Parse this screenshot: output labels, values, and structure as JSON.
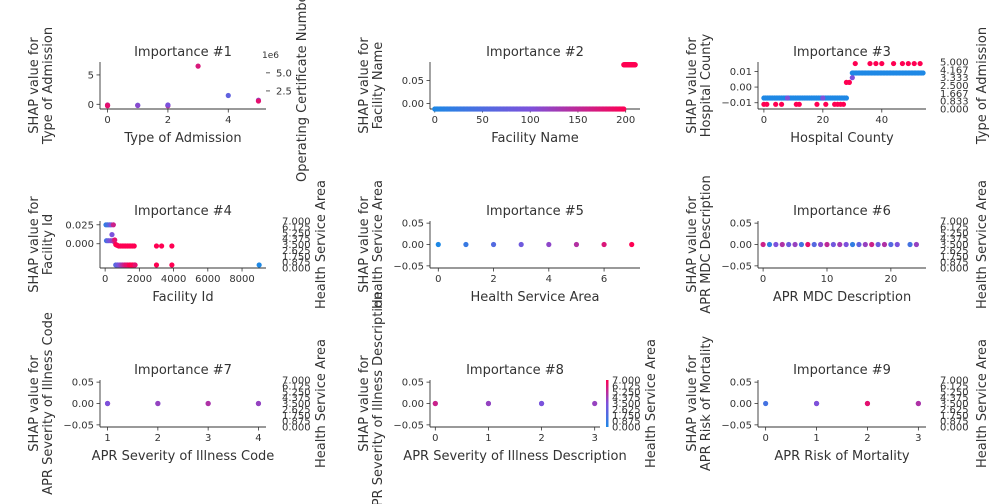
{
  "chart_data": [
    {
      "type": "scatter",
      "title": "Importance #1",
      "xlabel": "Type of Admission",
      "ylabel": [
        "SHAP value for",
        "Type of Admission"
      ],
      "xlim": [
        -0.25,
        5.25
      ],
      "ylim": [
        -0.8,
        7.2
      ],
      "xticks": [
        0,
        2,
        4
      ],
      "xtick_labels": [
        "0",
        "2",
        "4"
      ],
      "yticks": [
        0,
        5
      ],
      "ytick_labels": [
        "0",
        "5"
      ],
      "cbar": {
        "label": "Operating Certificate Number",
        "multiplier": "1e6",
        "ticks": [
          2.5,
          5.0
        ],
        "tick_labels": [
          "2.5",
          "5.0"
        ],
        "range": [
          0,
          6.5
        ],
        "style": "scale"
      },
      "points": [
        [
          0,
          -0.12,
          0.75
        ],
        [
          0,
          -0.18,
          0.85
        ],
        [
          0,
          -0.25,
          0.9
        ],
        [
          1,
          -0.15,
          0.3
        ],
        [
          1,
          -0.2,
          0.55
        ],
        [
          2,
          -0.18,
          0.1
        ],
        [
          2,
          -0.25,
          0.75
        ],
        [
          2,
          -0.12,
          0.5
        ],
        [
          3,
          6.5,
          0.85
        ],
        [
          4,
          1.5,
          0.35
        ],
        [
          5,
          0.7,
          0.6
        ],
        [
          5,
          0.55,
          0.9
        ]
      ]
    },
    {
      "type": "scatter",
      "title": "Importance #2",
      "xlabel": "Facility Name",
      "ylabel": [
        "SHAP value for",
        "Facility Name"
      ],
      "xlim": [
        -5,
        215
      ],
      "ylim": [
        -0.012,
        0.09
      ],
      "xticks": [
        0,
        50,
        100,
        150,
        200
      ],
      "xtick_labels": [
        "0",
        "50",
        "100",
        "150",
        "200"
      ],
      "yticks": [
        0,
        0.05
      ],
      "ytick_labels": [
        "0.00",
        "0.05"
      ],
      "cbar": null,
      "bands": [
        {
          "x0": 0,
          "x1": 198,
          "step": 1.5,
          "y": -0.012,
          "c0": 0,
          "c1": 0.98,
          "size": 2.6
        },
        {
          "x0": 198,
          "x1": 210,
          "step": 0.4,
          "y": 0.084,
          "c0": 1,
          "c1": 1,
          "size": 2.6
        }
      ],
      "points": []
    },
    {
      "type": "scatter",
      "title": "Importance #3",
      "xlabel": "Hospital County",
      "ylabel": [
        "SHAP value for",
        "Hospital County"
      ],
      "xlim": [
        -2,
        55
      ],
      "ylim": [
        -0.014,
        0.016
      ],
      "xticks": [
        0,
        20,
        40
      ],
      "xtick_labels": [
        "0",
        "20",
        "40"
      ],
      "yticks": [
        -0.01,
        0,
        0.01
      ],
      "ytick_labels": [
        "−0.01",
        "0.00",
        "0.01"
      ],
      "cbar": {
        "label": "Type of Admission",
        "ticks": [
          0,
          0.833,
          1.667,
          2.5,
          3.333,
          4.167,
          5.0
        ],
        "tick_labels": [
          "0.000",
          "0.833",
          "1.667",
          "2.500",
          "3.333",
          "4.167",
          "5.000"
        ],
        "range": [
          0,
          5
        ],
        "style": "labels"
      },
      "bands": [
        {
          "x0": 0,
          "x1": 28,
          "step": 0.6,
          "y": -0.007,
          "c0": 0,
          "c1": 0,
          "size": 2.6
        },
        {
          "x0": 30,
          "x1": 54,
          "step": 0.5,
          "y": 0.009,
          "c0": 0,
          "c1": 0,
          "size": 2.6
        }
      ],
      "points": [
        [
          0,
          -0.011,
          1
        ],
        [
          1,
          -0.011,
          1
        ],
        [
          4,
          -0.011,
          1
        ],
        [
          6,
          -0.011,
          1
        ],
        [
          11,
          -0.011,
          1
        ],
        [
          12,
          -0.011,
          1
        ],
        [
          18,
          -0.011,
          1
        ],
        [
          21,
          -0.011,
          1
        ],
        [
          24,
          -0.011,
          1
        ],
        [
          25,
          -0.011,
          1
        ],
        [
          26,
          -0.011,
          1
        ],
        [
          27,
          -0.011,
          1
        ],
        [
          28,
          0.003,
          1
        ],
        [
          29,
          0.003,
          1
        ],
        [
          30,
          0.006,
          0.5
        ],
        [
          31,
          0.015,
          1
        ],
        [
          36,
          0.015,
          1
        ],
        [
          38,
          0.015,
          1
        ],
        [
          40,
          0.015,
          1
        ],
        [
          44,
          0.015,
          1
        ],
        [
          47,
          0.015,
          1
        ],
        [
          49,
          0.015,
          1
        ],
        [
          51,
          0.015,
          1
        ],
        [
          53,
          0.015,
          1
        ],
        [
          20,
          -0.007,
          0.5
        ],
        [
          8,
          -0.007,
          0.5
        ]
      ]
    },
    {
      "type": "scatter",
      "title": "Importance #4",
      "xlabel": "Facility Id",
      "ylabel": [
        "SHAP value for",
        "Facility Id"
      ],
      "xlim": [
        -300,
        9400
      ],
      "ylim": [
        -0.032,
        0.03
      ],
      "xticks": [
        0,
        2000,
        4000,
        6000,
        8000
      ],
      "xtick_labels": [
        "0",
        "2000",
        "4000",
        "6000",
        "8000"
      ],
      "yticks": [
        0,
        0.025
      ],
      "ytick_labels": [
        "0.000",
        "0.025"
      ],
      "cbar": {
        "label": "Health Service Area",
        "ticks": [
          0,
          0.875,
          1.75,
          2.625,
          3.5,
          4.375,
          5.25,
          6.125,
          7.0
        ],
        "tick_labels": [
          "0.000",
          "0.875",
          "1.750",
          "2.625",
          "3.500",
          "4.375",
          "5.250",
          "6.125",
          "7.000"
        ],
        "range": [
          0,
          7
        ],
        "style": "labels"
      },
      "points": [
        [
          50,
          0.025,
          0.1
        ],
        [
          150,
          0.025,
          0.2
        ],
        [
          250,
          0.025,
          0.3
        ],
        [
          350,
          0.025,
          0.5
        ],
        [
          480,
          0.025,
          0.8
        ],
        [
          80,
          0.004,
          0.2
        ],
        [
          180,
          0.004,
          0.4
        ],
        [
          300,
          0.004,
          0.5
        ],
        [
          420,
          0.004,
          0.6
        ],
        [
          520,
          0.003,
          0.7
        ],
        [
          400,
          0.012,
          0.5
        ],
        [
          560,
          0.005,
          0.9
        ],
        [
          620,
          -0.001,
          1
        ],
        [
          700,
          -0.002,
          1
        ],
        [
          800,
          -0.003,
          1
        ],
        [
          900,
          -0.003,
          1
        ],
        [
          1000,
          -0.003,
          1
        ],
        [
          1100,
          -0.003,
          1
        ],
        [
          1200,
          -0.003,
          1
        ],
        [
          1300,
          -0.003,
          1
        ],
        [
          1400,
          -0.003,
          1
        ],
        [
          1500,
          -0.003,
          1
        ],
        [
          1600,
          -0.003,
          1
        ],
        [
          1700,
          -0.003,
          1
        ],
        [
          3000,
          -0.003,
          1
        ],
        [
          3300,
          -0.003,
          1
        ],
        [
          3900,
          -0.003,
          1
        ],
        [
          620,
          -0.028,
          0.3
        ],
        [
          720,
          -0.028,
          0.4
        ],
        [
          820,
          -0.028,
          0.5
        ],
        [
          920,
          -0.028,
          0.6
        ],
        [
          1020,
          -0.028,
          0.7
        ],
        [
          1120,
          -0.028,
          0.8
        ],
        [
          1220,
          -0.028,
          0.9
        ],
        [
          1320,
          -0.028,
          0.9
        ],
        [
          1420,
          -0.028,
          1
        ],
        [
          1500,
          -0.028,
          1
        ],
        [
          1600,
          -0.028,
          1
        ],
        [
          1700,
          -0.028,
          1
        ],
        [
          1750,
          -0.028,
          0.9
        ],
        [
          3000,
          -0.028,
          1
        ],
        [
          3900,
          -0.028,
          1
        ],
        [
          9000,
          -0.028,
          0
        ]
      ]
    },
    {
      "type": "scatter",
      "title": "Importance #5",
      "xlabel": "Health Service Area",
      "ylabel": [
        "SHAP value for",
        "Health Service Area"
      ],
      "xlim": [
        -0.3,
        7.3
      ],
      "ylim": [
        -0.055,
        0.055
      ],
      "xticks": [
        0,
        2,
        4,
        6
      ],
      "xtick_labels": [
        "0",
        "2",
        "4",
        "6"
      ],
      "yticks": [
        -0.05,
        0,
        0.05
      ],
      "ytick_labels": [
        "−0.05",
        "0.00",
        "0.05"
      ],
      "cbar": null,
      "points": [
        [
          0,
          0,
          0
        ],
        [
          1,
          0,
          0.14
        ],
        [
          2,
          0,
          0.28
        ],
        [
          3,
          0,
          0.43
        ],
        [
          4,
          0,
          0.57
        ],
        [
          5,
          0,
          0.71
        ],
        [
          6,
          0,
          0.86
        ],
        [
          7,
          0,
          1
        ]
      ]
    },
    {
      "type": "scatter",
      "title": "Importance #6",
      "xlabel": "APR MDC Description",
      "ylabel": [
        "SHAP value for",
        "APR MDC Description"
      ],
      "xlim": [
        -0.8,
        25.5
      ],
      "ylim": [
        -0.055,
        0.055
      ],
      "xticks": [
        0,
        10,
        20
      ],
      "xtick_labels": [
        "0",
        "10",
        "20"
      ],
      "yticks": [
        -0.05,
        0,
        0.05
      ],
      "ytick_labels": [
        "−0.05",
        "0.00",
        "0.05"
      ],
      "cbar": {
        "label": "Health Service Area",
        "ticks": [
          0,
          0.875,
          1.75,
          2.625,
          3.5,
          4.375,
          5.25,
          6.125,
          7.0
        ],
        "tick_labels": [
          "0.000",
          "0.875",
          "1.750",
          "2.625",
          "3.500",
          "4.375",
          "5.250",
          "6.125",
          "7.000"
        ],
        "range": [
          0,
          7
        ],
        "style": "labels"
      },
      "points": [
        [
          0,
          0,
          0.8
        ],
        [
          1,
          0,
          0.1
        ],
        [
          2,
          0,
          0.5
        ],
        [
          3,
          0,
          0.7
        ],
        [
          4,
          0,
          0.4
        ],
        [
          5,
          0,
          0.6
        ],
        [
          6,
          0,
          0.2
        ],
        [
          7,
          0,
          0.9
        ],
        [
          8,
          0,
          0.3
        ],
        [
          9,
          0,
          0.55
        ],
        [
          10,
          0,
          0.75
        ],
        [
          11,
          0,
          0.45
        ],
        [
          12,
          0,
          0.65
        ],
        [
          13,
          0,
          0.5
        ],
        [
          14,
          0,
          0.1
        ],
        [
          15,
          0,
          0.35
        ],
        [
          16,
          0,
          0.6
        ],
        [
          17,
          0,
          0.8
        ],
        [
          18,
          0,
          0.4
        ],
        [
          19,
          0,
          0.7
        ],
        [
          20,
          0,
          0.3
        ],
        [
          21,
          0,
          0.5
        ],
        [
          23,
          0,
          0.2
        ],
        [
          24,
          0,
          0.6
        ]
      ]
    },
    {
      "type": "scatter",
      "title": "Importance #7",
      "xlabel": "APR Severity of Illness Code",
      "ylabel": [
        "SHAP value for",
        "APR Severity of Illness Code"
      ],
      "xlim": [
        0.85,
        4.15
      ],
      "ylim": [
        -0.055,
        0.055
      ],
      "xticks": [
        1,
        2,
        3,
        4
      ],
      "xtick_labels": [
        "1",
        "2",
        "3",
        "4"
      ],
      "yticks": [
        -0.05,
        0,
        0.05
      ],
      "ytick_labels": [
        "−0.05",
        "0.00",
        "0.05"
      ],
      "cbar": {
        "label": "Health Service Area",
        "ticks": [
          0,
          0.875,
          1.75,
          2.625,
          3.5,
          4.375,
          5.25,
          6.125,
          7.0
        ],
        "tick_labels": [
          "0.000",
          "0.875",
          "1.750",
          "2.625",
          "3.500",
          "4.375",
          "5.250",
          "6.125",
          "7.000"
        ],
        "range": [
          0,
          7
        ],
        "style": "labels"
      },
      "points": [
        [
          1,
          0,
          0.8
        ],
        [
          1,
          0,
          0.5
        ],
        [
          2,
          0,
          0.3
        ],
        [
          2,
          0,
          0.6
        ],
        [
          3,
          0,
          0.5
        ],
        [
          3,
          0,
          0.7
        ],
        [
          4,
          0,
          0.4
        ],
        [
          4,
          0,
          0.6
        ]
      ]
    },
    {
      "type": "scatter",
      "title": "Importance #8",
      "xlabel": "APR Severity of Illness Description",
      "ylabel": [
        "SHAP value for",
        "APR Severity of Illness Description"
      ],
      "xlim": [
        -0.1,
        3.1
      ],
      "ylim": [
        -0.055,
        0.055
      ],
      "xticks": [
        0,
        1,
        2,
        3
      ],
      "xtick_labels": [
        "0",
        "1",
        "2",
        "3"
      ],
      "yticks": [
        -0.05,
        0,
        0.05
      ],
      "ytick_labels": [
        "−0.05",
        "0.00",
        "0.05"
      ],
      "cbar": {
        "label": "Health Service Area",
        "ticks": [
          0,
          0.875,
          1.75,
          2.625,
          3.5,
          4.375,
          5.25,
          6.125,
          7.0
        ],
        "tick_labels": [
          "0.000",
          "0.875",
          "1.750",
          "2.625",
          "3.500",
          "4.375",
          "5.250",
          "6.125",
          "7.000"
        ],
        "range": [
          0,
          7
        ],
        "style": "bar"
      },
      "points": [
        [
          0,
          0,
          0.5
        ],
        [
          0,
          0,
          0.8
        ],
        [
          1,
          0,
          0.3
        ],
        [
          1,
          0,
          0.6
        ],
        [
          2,
          0,
          0.2
        ],
        [
          2,
          0,
          0.5
        ],
        [
          3,
          0,
          0.6
        ]
      ]
    },
    {
      "type": "scatter",
      "title": "Importance #9",
      "xlabel": "APR Risk of Mortality",
      "ylabel": [
        "SHAP value for",
        "APR Risk of Mortality"
      ],
      "xlim": [
        -0.15,
        3.15
      ],
      "ylim": [
        -0.055,
        0.055
      ],
      "xticks": [
        0,
        1,
        2,
        3
      ],
      "xtick_labels": [
        "0",
        "1",
        "2",
        "3"
      ],
      "yticks": [
        -0.05,
        0,
        0.05
      ],
      "ytick_labels": [
        "−0.05",
        "0.00",
        "0.05"
      ],
      "cbar": {
        "label": "Health Service Area",
        "ticks": [
          0,
          0.875,
          1.75,
          2.625,
          3.5,
          4.375,
          5.25,
          6.125,
          7.0
        ],
        "tick_labels": [
          "0.000",
          "0.875",
          "1.750",
          "2.625",
          "3.500",
          "4.375",
          "5.250",
          "6.125",
          "7.000"
        ],
        "range": [
          0,
          7
        ],
        "style": "labels"
      },
      "points": [
        [
          0,
          0,
          0.2
        ],
        [
          1,
          0,
          0.8
        ],
        [
          1,
          0,
          0.5
        ],
        [
          2,
          0,
          0.6
        ],
        [
          2,
          0,
          0.9
        ],
        [
          3,
          0,
          0.4
        ],
        [
          3,
          0,
          0.7
        ]
      ]
    }
  ],
  "colors": {
    "low": "#1e88e5",
    "high": "#ff0052",
    "axis": "#333333"
  }
}
